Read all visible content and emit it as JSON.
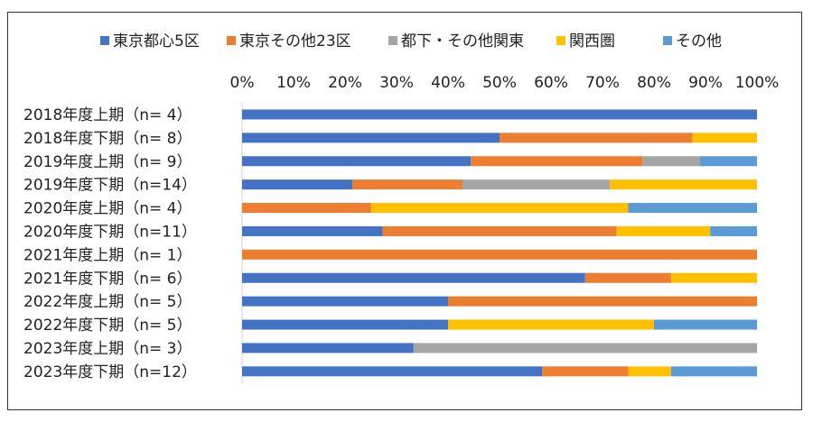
{
  "chart_data": {
    "type": "bar",
    "orientation": "horizontal",
    "stacked": "percent",
    "legend_position": "top",
    "xlim": [
      0,
      100
    ],
    "x_ticks": [
      "0%",
      "10%",
      "20%",
      "30%",
      "40%",
      "50%",
      "60%",
      "70%",
      "80%",
      "90%",
      "100%"
    ],
    "grid": false,
    "categories": [
      "2018年度上期（n=  4）",
      "2018年度下期（n=  8）",
      "2019年度上期（n=  9）",
      "2019年度下期（n=14）",
      "2020年度上期（n=  4）",
      "2020年度下期（n=11）",
      "2021年度上期（n=  1）",
      "2021年度下期（n=  6）",
      "2022年度上期（n=  5）",
      "2022年度下期（n=  5）",
      "2023年度上期（n=  3）",
      "2023年度下期（n=12）"
    ],
    "series": [
      {
        "name": "東京都心5区",
        "color": "#4472C4",
        "values": [
          100,
          50,
          44.4,
          21.4,
          0,
          27.3,
          0,
          66.7,
          40,
          40,
          33.3,
          58.3
        ]
      },
      {
        "name": "東京その他23区",
        "color": "#ED7D31",
        "values": [
          0,
          37.5,
          33.3,
          21.4,
          25,
          45.5,
          100,
          16.7,
          60,
          0,
          0,
          16.7
        ]
      },
      {
        "name": "都下・その他関東",
        "color": "#A5A5A5",
        "values": [
          0,
          0,
          11.1,
          28.6,
          0,
          0,
          0,
          0,
          0,
          0,
          66.7,
          0
        ]
      },
      {
        "name": "関西圏",
        "color": "#FFC000",
        "values": [
          0,
          12.5,
          0,
          28.6,
          50,
          18.2,
          0,
          16.7,
          0,
          40,
          0,
          8.3
        ]
      },
      {
        "name": "その他",
        "color": "#5B9BD5",
        "values": [
          0,
          0,
          11.1,
          0,
          25,
          9.1,
          0,
          0,
          0,
          20,
          0,
          16.7
        ]
      }
    ]
  }
}
